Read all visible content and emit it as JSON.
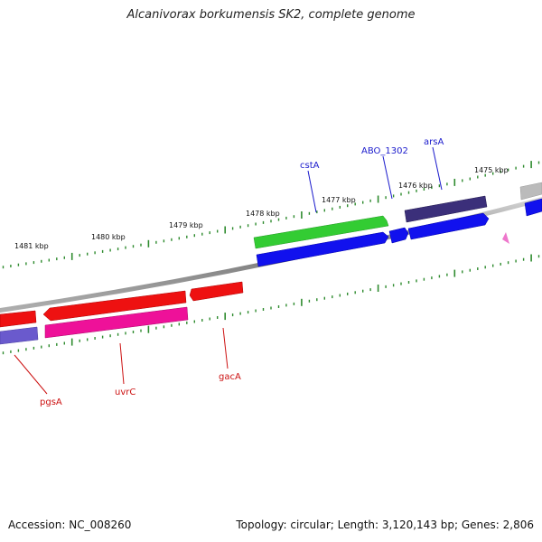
{
  "title": "Alcanivorax borkumensis SK2, complete genome",
  "footer": {
    "accession": "Accession: NC_008260",
    "summary": "Topology: circular; Length: 3,120,143 bp; Genes: 2,806"
  },
  "colors": {
    "backbone": "#8a8a8a",
    "tick": "#2e8b2e",
    "label_blue": "#1a1acc",
    "label_red": "#cc1111"
  },
  "tick_labels": [
    "1475 kbp",
    "1476 kbp",
    "1477 kbp",
    "1478 kbp",
    "1479 kbp",
    "1480 kbp",
    "1481 kbp"
  ],
  "genes": [
    {
      "name": "cstA",
      "color": "#33cc33"
    },
    {
      "name": "ABO_1302",
      "color": "#1111ee"
    },
    {
      "name": "arsA",
      "color": "#3b2f7a"
    },
    {
      "name": "gacA",
      "color": "#ee1111"
    },
    {
      "name": "uvrC",
      "color": "#ee1111"
    },
    {
      "name": "pgsA",
      "color": "#ee1111"
    }
  ]
}
